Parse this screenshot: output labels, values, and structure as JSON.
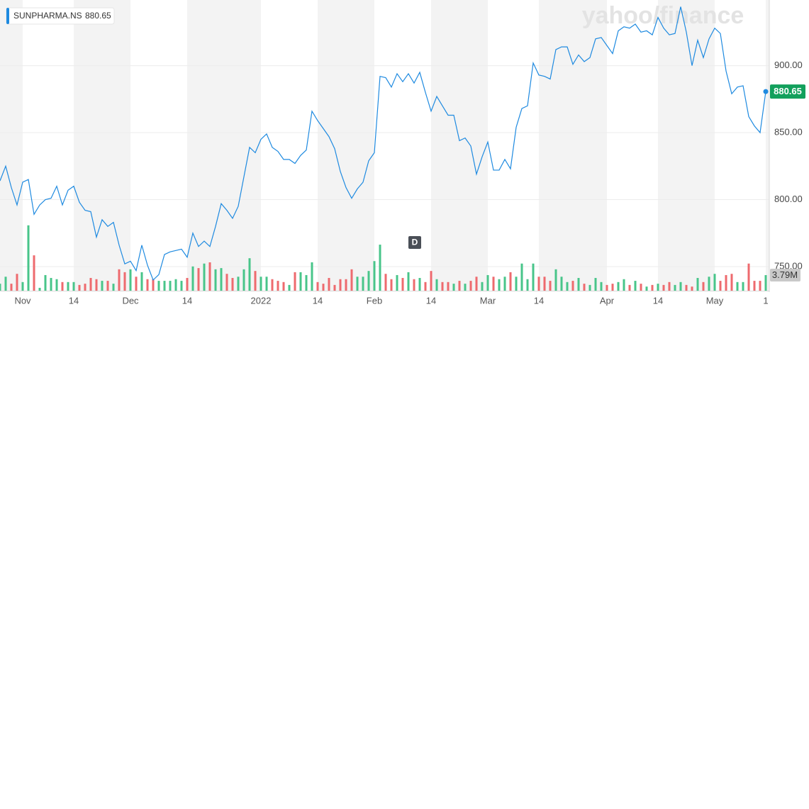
{
  "chart_data": {
    "type": "line",
    "watermark": "yahoo/finance",
    "event_label": "D",
    "categories": [
      null,
      null,
      null,
      null,
      "Nov",
      null,
      null,
      null,
      null,
      null,
      null,
      null,
      null,
      "14",
      null,
      null,
      null,
      null,
      null,
      null,
      null,
      null,
      null,
      "Dec",
      null,
      null,
      null,
      null,
      null,
      null,
      null,
      null,
      null,
      "14",
      null,
      null,
      null,
      null,
      null,
      null,
      null,
      null,
      null,
      null,
      null,
      null,
      "2022",
      null,
      null,
      null,
      null,
      null,
      null,
      null,
      null,
      null,
      "14",
      null,
      null,
      null,
      null,
      null,
      null,
      null,
      null,
      null,
      "Feb",
      null,
      null,
      null,
      null,
      null,
      null,
      null,
      null,
      null,
      "14",
      null,
      null,
      null,
      null,
      null,
      null,
      null,
      null,
      null,
      "Mar",
      null,
      null,
      null,
      null,
      null,
      null,
      null,
      null,
      "14",
      null,
      null,
      null,
      null,
      null,
      null,
      null,
      null,
      null,
      null,
      null,
      "Apr",
      null,
      null,
      null,
      null,
      null,
      null,
      null,
      null,
      "14",
      null,
      null,
      null,
      null,
      null,
      null,
      null,
      null,
      null,
      "May",
      null,
      null,
      null,
      null,
      null,
      null,
      null,
      null,
      "1"
    ],
    "series": [
      {
        "name": "SUNPHARMA.NS",
        "color": "#1e8ae0",
        "values": [
          814,
          825,
          809,
          796,
          813,
          815,
          789,
          796,
          800,
          801,
          810,
          796,
          807,
          810,
          798,
          792,
          791,
          772,
          785,
          780,
          783,
          766,
          752,
          754,
          747,
          766,
          751,
          740,
          744,
          759,
          761,
          762,
          763,
          757,
          775,
          765,
          769,
          765,
          780,
          797,
          792,
          786,
          795,
          817,
          839,
          835,
          845,
          849,
          839,
          836,
          830,
          830,
          827,
          833,
          837,
          866,
          859,
          853,
          847,
          838,
          821,
          809,
          801,
          808,
          813,
          829,
          835,
          892,
          891,
          884,
          894,
          888,
          894,
          887,
          895,
          880,
          866,
          877,
          870,
          863,
          863,
          844,
          846,
          840,
          819,
          832,
          843,
          822,
          822,
          830,
          823,
          854,
          868,
          870,
          902,
          893,
          892,
          890,
          912,
          914,
          914,
          901,
          908,
          903,
          906,
          920,
          921,
          915,
          909,
          926,
          929,
          928,
          931,
          925,
          926,
          923,
          936,
          928,
          923,
          924,
          944,
          925,
          900,
          919,
          906,
          920,
          928,
          924,
          896,
          879,
          884,
          885,
          862,
          855,
          850,
          880.65
        ]
      },
      {
        "axis": "y2",
        "up_color": "#48c58a",
        "down_color": "#ee6a6e",
        "values": [
          1.7,
          3.4,
          1.7,
          4.1,
          2.1,
          15.9,
          8.6,
          0.7,
          3.8,
          3.1,
          2.8,
          2.1,
          2.1,
          2.1,
          1.4,
          1.7,
          3.1,
          2.8,
          2.4,
          2.4,
          1.7,
          5.2,
          4.5,
          5.2,
          3.4,
          4.5,
          2.8,
          2.8,
          2.4,
          2.4,
          2.4,
          2.8,
          2.4,
          3.1,
          5.9,
          5.5,
          6.6,
          6.9,
          5.2,
          5.5,
          4.1,
          3.1,
          3.4,
          5.2,
          7.9,
          4.8,
          3.4,
          3.4,
          2.8,
          2.4,
          2.1,
          1.4,
          4.5,
          4.5,
          3.8,
          6.9,
          2.1,
          1.7,
          3.1,
          1.4,
          2.8,
          2.8,
          5.2,
          3.4,
          3.4,
          4.8,
          7.2,
          11.2,
          4.1,
          2.8,
          3.8,
          3.1,
          4.5,
          2.8,
          3.1,
          2.1,
          4.8,
          2.8,
          2.1,
          2.1,
          1.7,
          2.4,
          1.7,
          2.4,
          3.4,
          2.1,
          3.8,
          3.4,
          2.8,
          3.4,
          4.5,
          3.4,
          6.6,
          2.8,
          6.6,
          3.4,
          3.4,
          2.4,
          5.2,
          3.4,
          2.1,
          2.4,
          3.1,
          1.7,
          1.4,
          3.1,
          2.1,
          1.4,
          1.7,
          2.1,
          2.8,
          1.4,
          2.4,
          1.7,
          1.0,
          1.4,
          1.7,
          1.4,
          2.1,
          1.4,
          2.1,
          1.4,
          1.0,
          3.1,
          2.1,
          3.4,
          4.1,
          2.4,
          3.8,
          4.1,
          2.1,
          2.1,
          6.6,
          2.4,
          2.4,
          3.79
        ],
        "value_labels": [
          null,
          null,
          null,
          null,
          null,
          null,
          null,
          null,
          null,
          null,
          null,
          null,
          null,
          null,
          null,
          null,
          null,
          null,
          null,
          null,
          null,
          null,
          null,
          null,
          null,
          null,
          null,
          null,
          null,
          null,
          null,
          null,
          null,
          null,
          null,
          null,
          null,
          null,
          null,
          null,
          null,
          null,
          null,
          null,
          null,
          null,
          null,
          null,
          null,
          null,
          null,
          null,
          null,
          null,
          null,
          null,
          null,
          null,
          null,
          null,
          null,
          null,
          null,
          null,
          null,
          null,
          null,
          null,
          null,
          null,
          null,
          null,
          null,
          null,
          null,
          null,
          null,
          null,
          null,
          null,
          null,
          null,
          null,
          null,
          null,
          null,
          null,
          null,
          null,
          null,
          null,
          null,
          null,
          null,
          null,
          null,
          null,
          null,
          null,
          null,
          null,
          null,
          null,
          null,
          null,
          null,
          null,
          null,
          null,
          null,
          null,
          null,
          null,
          null,
          null,
          null,
          null,
          null,
          null,
          null,
          null,
          null,
          null,
          null,
          null,
          null,
          null,
          null,
          null,
          null,
          null,
          null,
          null,
          null,
          null,
          "3.79M"
        ]
      }
    ],
    "ylim": [
      732,
      949
    ],
    "yticks": [
      {
        "value": 750,
        "label": "750.00"
      },
      {
        "value": 800,
        "label": "800.00"
      },
      {
        "value": 850,
        "label": "850.00"
      },
      {
        "value": 900,
        "label": "900.00"
      }
    ],
    "y2lim": [
      0,
      70.7
    ],
    "grid": true,
    "band_color": "#f3f3f3",
    "tag_color": "#12a05c"
  }
}
